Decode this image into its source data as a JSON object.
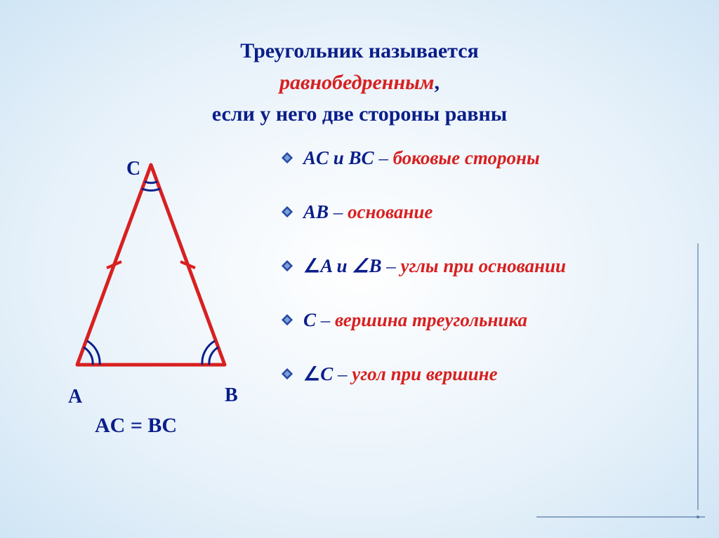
{
  "heading": {
    "line1": "Треугольник называется",
    "line2": "равнобедренным",
    "line3": "если у него две  стороны равны"
  },
  "triangle": {
    "vertices": {
      "A": "A",
      "B": "B",
      "C": "C"
    },
    "equation": "AC = BC",
    "stroke_color": "#d82020",
    "angle_stroke_color": "#0a1e8a",
    "stroke_width": 5,
    "points": {
      "C": [
        130,
        25
      ],
      "A": [
        25,
        310
      ],
      "B": [
        235,
        310
      ]
    },
    "vertex_positions": {
      "C": [
        180,
        15
      ],
      "A": [
        97,
        340
      ],
      "B": [
        320,
        338
      ]
    },
    "label_fontsize": 28,
    "label_color": "#0a1e8a"
  },
  "bullets": [
    {
      "lhs": "AC и BC",
      "rhs": "боковые стороны",
      "angle_lhs": false,
      "angle_rhs": false
    },
    {
      "lhs": "AB",
      "rhs": "основание",
      "angle_lhs": false,
      "angle_rhs": false
    },
    {
      "lhs": "A и ∠B",
      "rhs": "углы при основании",
      "angle_lhs": true,
      "angle_rhs": false
    },
    {
      "lhs": "C",
      "rhs": "вершина треугольника",
      "angle_lhs": false,
      "angle_rhs": false
    },
    {
      "lhs": "C",
      "rhs": "угол при вершине",
      "angle_lhs": true,
      "angle_rhs": false
    }
  ],
  "bullet_style": {
    "fontsize": 27,
    "blue": "#0a1e8a",
    "red": "#d82020",
    "icon_size": 18
  },
  "background": {
    "gradient_center": "#ffffff",
    "gradient_edge": "#d0e5f5"
  },
  "decoration": {
    "line_color": "#5a7aa8"
  }
}
